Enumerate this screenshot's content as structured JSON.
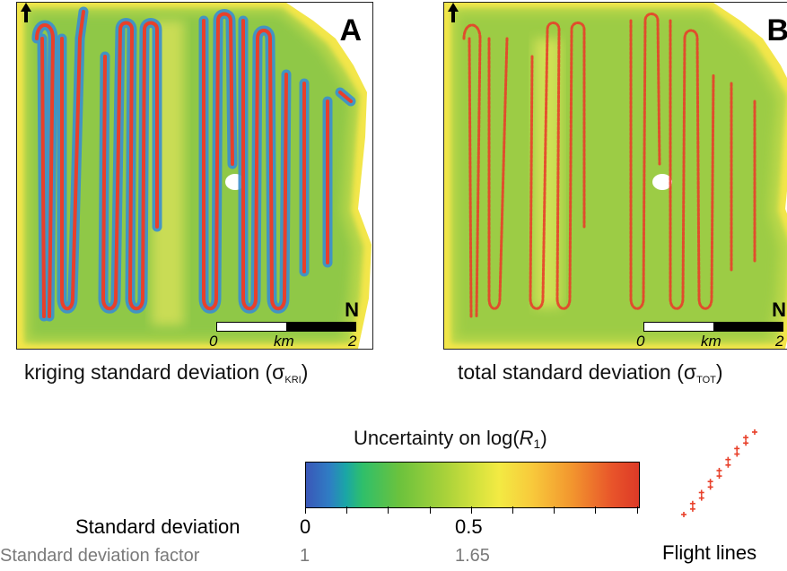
{
  "panel_a": {
    "letter": "A",
    "north": "N",
    "scale_start": "0",
    "scale_unit": "km",
    "scale_end": "2",
    "caption_main": "kriging standard deviation (σ",
    "caption_sub": "KRI",
    "caption_close": ")"
  },
  "panel_b": {
    "letter": "B",
    "north": "N",
    "scale_start": "0",
    "scale_unit": "km",
    "scale_end": "2",
    "caption_main": "total standard deviation (σ",
    "caption_sub": "TOT",
    "caption_close": ")"
  },
  "colorbar": {
    "title_prefix": "Uncertainty on log(",
    "title_var": "R",
    "title_sub": "1",
    "title_suffix": ")",
    "sd_label": "Standard deviation",
    "sd_min": "0",
    "sd_mid": "0.5",
    "sdf_label": "Standard deviation factor",
    "sdf_min": "1",
    "sdf_mid": "1.65"
  },
  "legend": {
    "flight_lines_label": "Flight lines"
  },
  "colors": {
    "flight_line_marker": "#e8402a",
    "kriging_line_halo": "#3a8fd0",
    "low": "#3a57b8",
    "mid": "#f3ea43",
    "high": "#dd3a27"
  }
}
